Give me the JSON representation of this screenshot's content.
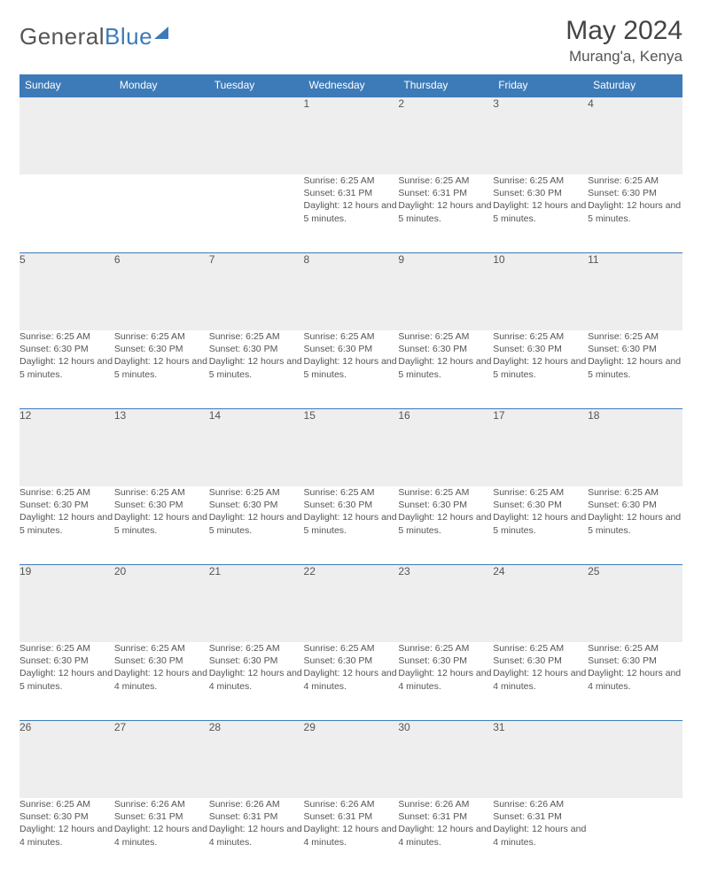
{
  "logo": {
    "text_gray": "General",
    "text_blue": "Blue"
  },
  "header": {
    "title": "May 2024",
    "location": "Murang'a, Kenya"
  },
  "weekdays": [
    "Sunday",
    "Monday",
    "Tuesday",
    "Wednesday",
    "Thursday",
    "Friday",
    "Saturday"
  ],
  "colors": {
    "brand_blue": "#3d7bb8",
    "header_bg": "#3d7bb8",
    "day_band_bg": "#eeeeee",
    "text": "#555555",
    "page_bg": "#ffffff"
  },
  "weeks": [
    [
      null,
      null,
      null,
      {
        "n": "1",
        "sr": "Sunrise: 6:25 AM",
        "ss": "Sunset: 6:31 PM",
        "dl": "Daylight: 12 hours and 5 minutes."
      },
      {
        "n": "2",
        "sr": "Sunrise: 6:25 AM",
        "ss": "Sunset: 6:31 PM",
        "dl": "Daylight: 12 hours and 5 minutes."
      },
      {
        "n": "3",
        "sr": "Sunrise: 6:25 AM",
        "ss": "Sunset: 6:30 PM",
        "dl": "Daylight: 12 hours and 5 minutes."
      },
      {
        "n": "4",
        "sr": "Sunrise: 6:25 AM",
        "ss": "Sunset: 6:30 PM",
        "dl": "Daylight: 12 hours and 5 minutes."
      }
    ],
    [
      {
        "n": "5",
        "sr": "Sunrise: 6:25 AM",
        "ss": "Sunset: 6:30 PM",
        "dl": "Daylight: 12 hours and 5 minutes."
      },
      {
        "n": "6",
        "sr": "Sunrise: 6:25 AM",
        "ss": "Sunset: 6:30 PM",
        "dl": "Daylight: 12 hours and 5 minutes."
      },
      {
        "n": "7",
        "sr": "Sunrise: 6:25 AM",
        "ss": "Sunset: 6:30 PM",
        "dl": "Daylight: 12 hours and 5 minutes."
      },
      {
        "n": "8",
        "sr": "Sunrise: 6:25 AM",
        "ss": "Sunset: 6:30 PM",
        "dl": "Daylight: 12 hours and 5 minutes."
      },
      {
        "n": "9",
        "sr": "Sunrise: 6:25 AM",
        "ss": "Sunset: 6:30 PM",
        "dl": "Daylight: 12 hours and 5 minutes."
      },
      {
        "n": "10",
        "sr": "Sunrise: 6:25 AM",
        "ss": "Sunset: 6:30 PM",
        "dl": "Daylight: 12 hours and 5 minutes."
      },
      {
        "n": "11",
        "sr": "Sunrise: 6:25 AM",
        "ss": "Sunset: 6:30 PM",
        "dl": "Daylight: 12 hours and 5 minutes."
      }
    ],
    [
      {
        "n": "12",
        "sr": "Sunrise: 6:25 AM",
        "ss": "Sunset: 6:30 PM",
        "dl": "Daylight: 12 hours and 5 minutes."
      },
      {
        "n": "13",
        "sr": "Sunrise: 6:25 AM",
        "ss": "Sunset: 6:30 PM",
        "dl": "Daylight: 12 hours and 5 minutes."
      },
      {
        "n": "14",
        "sr": "Sunrise: 6:25 AM",
        "ss": "Sunset: 6:30 PM",
        "dl": "Daylight: 12 hours and 5 minutes."
      },
      {
        "n": "15",
        "sr": "Sunrise: 6:25 AM",
        "ss": "Sunset: 6:30 PM",
        "dl": "Daylight: 12 hours and 5 minutes."
      },
      {
        "n": "16",
        "sr": "Sunrise: 6:25 AM",
        "ss": "Sunset: 6:30 PM",
        "dl": "Daylight: 12 hours and 5 minutes."
      },
      {
        "n": "17",
        "sr": "Sunrise: 6:25 AM",
        "ss": "Sunset: 6:30 PM",
        "dl": "Daylight: 12 hours and 5 minutes."
      },
      {
        "n": "18",
        "sr": "Sunrise: 6:25 AM",
        "ss": "Sunset: 6:30 PM",
        "dl": "Daylight: 12 hours and 5 minutes."
      }
    ],
    [
      {
        "n": "19",
        "sr": "Sunrise: 6:25 AM",
        "ss": "Sunset: 6:30 PM",
        "dl": "Daylight: 12 hours and 5 minutes."
      },
      {
        "n": "20",
        "sr": "Sunrise: 6:25 AM",
        "ss": "Sunset: 6:30 PM",
        "dl": "Daylight: 12 hours and 4 minutes."
      },
      {
        "n": "21",
        "sr": "Sunrise: 6:25 AM",
        "ss": "Sunset: 6:30 PM",
        "dl": "Daylight: 12 hours and 4 minutes."
      },
      {
        "n": "22",
        "sr": "Sunrise: 6:25 AM",
        "ss": "Sunset: 6:30 PM",
        "dl": "Daylight: 12 hours and 4 minutes."
      },
      {
        "n": "23",
        "sr": "Sunrise: 6:25 AM",
        "ss": "Sunset: 6:30 PM",
        "dl": "Daylight: 12 hours and 4 minutes."
      },
      {
        "n": "24",
        "sr": "Sunrise: 6:25 AM",
        "ss": "Sunset: 6:30 PM",
        "dl": "Daylight: 12 hours and 4 minutes."
      },
      {
        "n": "25",
        "sr": "Sunrise: 6:25 AM",
        "ss": "Sunset: 6:30 PM",
        "dl": "Daylight: 12 hours and 4 minutes."
      }
    ],
    [
      {
        "n": "26",
        "sr": "Sunrise: 6:25 AM",
        "ss": "Sunset: 6:30 PM",
        "dl": "Daylight: 12 hours and 4 minutes."
      },
      {
        "n": "27",
        "sr": "Sunrise: 6:26 AM",
        "ss": "Sunset: 6:31 PM",
        "dl": "Daylight: 12 hours and 4 minutes."
      },
      {
        "n": "28",
        "sr": "Sunrise: 6:26 AM",
        "ss": "Sunset: 6:31 PM",
        "dl": "Daylight: 12 hours and 4 minutes."
      },
      {
        "n": "29",
        "sr": "Sunrise: 6:26 AM",
        "ss": "Sunset: 6:31 PM",
        "dl": "Daylight: 12 hours and 4 minutes."
      },
      {
        "n": "30",
        "sr": "Sunrise: 6:26 AM",
        "ss": "Sunset: 6:31 PM",
        "dl": "Daylight: 12 hours and 4 minutes."
      },
      {
        "n": "31",
        "sr": "Sunrise: 6:26 AM",
        "ss": "Sunset: 6:31 PM",
        "dl": "Daylight: 12 hours and 4 minutes."
      },
      null
    ]
  ]
}
